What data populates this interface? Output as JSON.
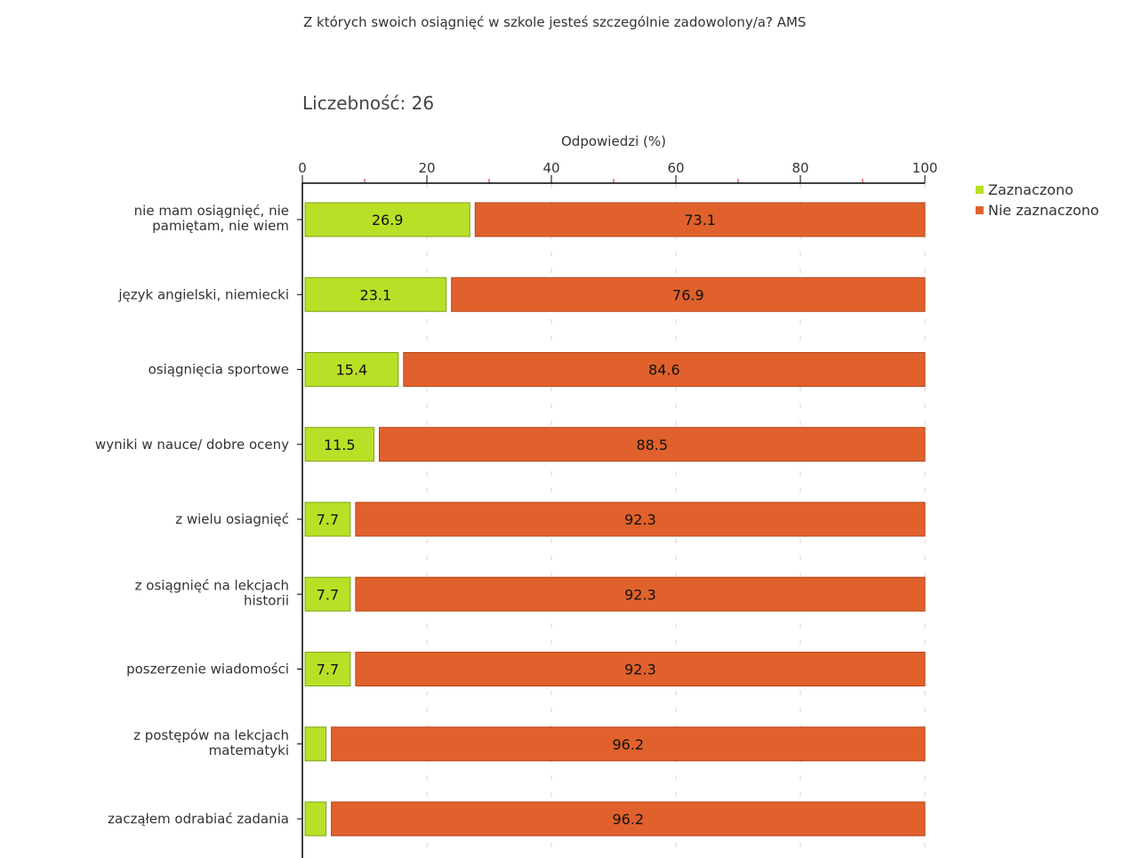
{
  "chart_data": {
    "type": "bar",
    "orientation": "horizontal",
    "stacked": true,
    "title": "Z których swoich osiągnięć w szkole jesteś szczególnie zadowolony/a? AMS",
    "subtitle": "Liczebność: 26",
    "xlabel": "Odpowiedzi (%)",
    "xlim": [
      0,
      100
    ],
    "xticks": [
      "0",
      "20",
      "40",
      "60",
      "80",
      "100"
    ],
    "grid": "vertical dashed",
    "legend_position": "top-right",
    "categories": [
      [
        "nie mam osiągnięć, nie",
        "pamiętam, nie wiem"
      ],
      [
        "język angielski, niemiecki"
      ],
      [
        "osiągnięcia sportowe"
      ],
      [
        "wyniki w nauce/ dobre oceny"
      ],
      [
        "z wielu osiagnięć"
      ],
      [
        "z osiągnięć na lekcjach",
        "historii"
      ],
      [
        "poszerzenie wiadomości"
      ],
      [
        "z postępów na  lekcjach",
        "matematyki"
      ],
      [
        "zacząłem odrabiać zadania"
      ]
    ],
    "series": [
      {
        "name": "Zaznaczono",
        "color": "#b9e027",
        "border": "#7fa31a",
        "values": [
          26.9,
          23.1,
          15.4,
          11.5,
          7.7,
          7.7,
          7.7,
          3.8,
          3.8
        ],
        "labels": [
          "26.9",
          "23.1",
          "15.4",
          "11.5",
          "7.7",
          "7.7",
          "7.7",
          "",
          ""
        ]
      },
      {
        "name": "Nie zaznaczono",
        "color": "#e0612b",
        "border": "#b8441a",
        "values": [
          73.1,
          76.9,
          84.6,
          88.5,
          92.3,
          92.3,
          92.3,
          96.2,
          96.2
        ],
        "labels": [
          "73.1",
          "76.9",
          "84.6",
          "88.5",
          "92.3",
          "92.3",
          "92.3",
          "96.2",
          "96.2"
        ]
      }
    ]
  }
}
